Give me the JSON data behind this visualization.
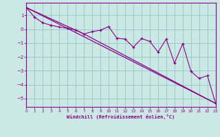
{
  "title": "",
  "xlabel": "Windchill (Refroidissement éolien,°C)",
  "bg_color": "#cce8e4",
  "grid_color": "#99cccc",
  "line_color": "#880088",
  "xlim": [
    0,
    23
  ],
  "ylim": [
    -5.6,
    1.9
  ],
  "yticks": [
    1,
    0,
    -1,
    -2,
    -3,
    -4,
    -5
  ],
  "xticks": [
    0,
    1,
    2,
    3,
    4,
    5,
    6,
    7,
    8,
    9,
    10,
    11,
    12,
    13,
    14,
    15,
    16,
    17,
    18,
    19,
    20,
    21,
    22,
    23
  ],
  "series1_x": [
    0,
    1,
    2,
    3,
    4,
    5,
    6,
    7,
    8,
    9,
    10,
    11,
    12,
    13,
    14,
    15,
    16,
    17,
    18,
    19,
    20,
    21,
    22,
    23
  ],
  "series1_y": [
    1.55,
    0.85,
    0.45,
    0.28,
    0.15,
    0.05,
    -0.05,
    -0.35,
    -0.18,
    -0.08,
    0.18,
    -0.65,
    -0.72,
    -1.3,
    -0.68,
    -0.88,
    -1.65,
    -0.72,
    -2.45,
    -1.05,
    -3.05,
    -3.55,
    -3.35,
    -5.35
  ],
  "series2_x": [
    0,
    23
  ],
  "series2_y": [
    1.55,
    -5.35
  ],
  "series3_x": [
    0,
    7,
    23
  ],
  "series3_y": [
    1.55,
    -0.35,
    -5.35
  ]
}
